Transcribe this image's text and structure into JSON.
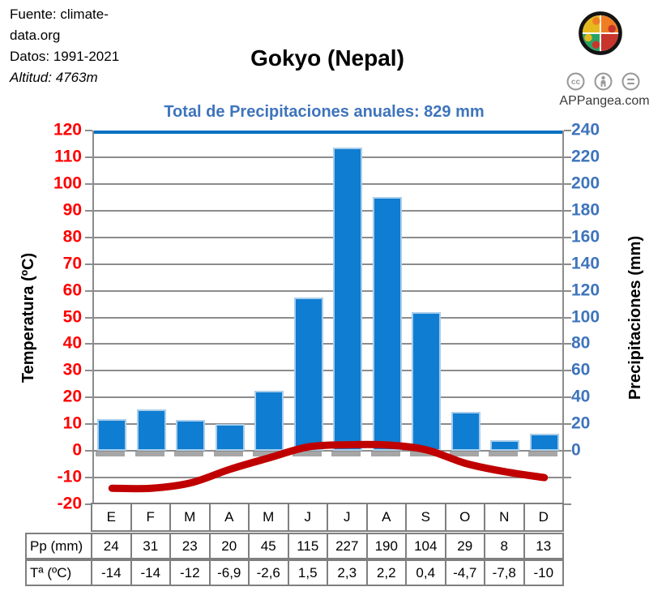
{
  "header": {
    "source_line1": "Fuente: climate-",
    "source_line2": "data.org",
    "datos": "Datos: 1991-2021",
    "altitud": "Altitud: 4763m",
    "title": "Gokyo (Nepal)",
    "subtitle": "Total de Precipitaciones anuales: 829 mm",
    "website": "APPangea.com"
  },
  "chart_data": {
    "type": "bar",
    "title": "Gokyo (Nepal)",
    "subtitle": "Total de Precipitaciones anuales: 829 mm",
    "categories": [
      "E",
      "F",
      "M",
      "A",
      "M",
      "J",
      "J",
      "A",
      "S",
      "O",
      "N",
      "D"
    ],
    "series": [
      {
        "name": "Pp (mm)",
        "type": "bar",
        "axis": "right",
        "values": [
          24,
          31,
          23,
          20,
          45,
          115,
          227,
          190,
          104,
          29,
          8,
          13
        ]
      },
      {
        "name": "Tª (ºC)",
        "type": "line",
        "axis": "left",
        "values": [
          -14,
          -14,
          -12,
          -6.9,
          -2.6,
          1.5,
          2.3,
          2.2,
          0.4,
          -4.7,
          -7.8,
          -10
        ]
      }
    ],
    "left_axis": {
      "label": "Temperatura (ºC)",
      "min": -20,
      "max": 120,
      "step": 10
    },
    "right_axis": {
      "label": "Precipitaciones (mm)",
      "min": 0,
      "max": 240,
      "step": 20,
      "label_min_temp_equiv": 0
    },
    "annual_total_mm": 829,
    "grid": true,
    "legend": "none"
  },
  "table": {
    "rows": [
      {
        "label": "Pp (mm)",
        "values": [
          "24",
          "31",
          "23",
          "20",
          "45",
          "115",
          "227",
          "190",
          "104",
          "29",
          "8",
          "13"
        ]
      },
      {
        "label": "Tª (ºC)",
        "values": [
          "-14",
          "-14",
          "-12",
          "-6,9",
          "-2,6",
          "1,5",
          "2,3",
          "2,2",
          "0,4",
          "-4,7",
          "-7,8",
          "-10"
        ]
      }
    ]
  },
  "colors": {
    "bar_fill": "#0f7dd1",
    "bar_border": "#a9cdea",
    "bar_shadow": "#a6a6a6",
    "temp_line": "#c00000",
    "left_axis_text": "#ff0000",
    "right_axis_text": "#3e74bc",
    "subtitle_text": "#3e74bc",
    "grid": "#8c8c8c",
    "table_border": "#7f7f7f",
    "plot_top_border": "#0070c0",
    "logo_yellow": "#e6b91e",
    "logo_orange": "#ef7d22",
    "logo_green": "#2aa264",
    "logo_red": "#c8352c",
    "cc_gray": "#9a9a9a"
  }
}
